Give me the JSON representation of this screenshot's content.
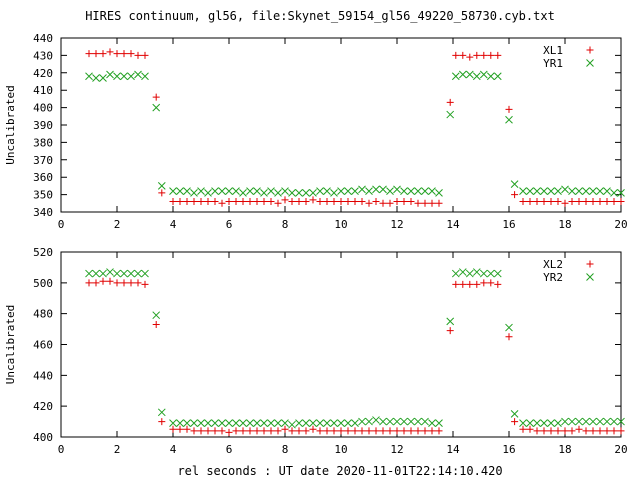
{
  "title": "HIRES continuum, gl56, file:Skynet_59154_gl56_49220_58730.cyb.txt",
  "colors": {
    "xl": "#e00000",
    "yr": "#22a022",
    "axis": "#000000"
  },
  "chart_data": [
    {
      "type": "scatter",
      "title": "HIRES continuum, gl56, file:Skynet_59154_gl56_49220_58730.cyb.txt",
      "xlabel": "",
      "ylabel": "Uncalibrated",
      "xlim": [
        0,
        20
      ],
      "ylim": [
        340,
        440
      ],
      "xticks": [
        0,
        2,
        4,
        6,
        8,
        10,
        12,
        14,
        16,
        18,
        20
      ],
      "yticks": [
        340,
        350,
        360,
        370,
        380,
        390,
        400,
        410,
        420,
        430,
        440
      ],
      "grid": false,
      "legend": "top-right",
      "series": [
        {
          "name": "XL1",
          "marker": "plus",
          "color": "#e00000",
          "x": [
            1.0,
            1.25,
            1.5,
            1.75,
            2.0,
            2.25,
            2.5,
            2.75,
            3.0,
            3.4,
            3.6,
            4.0,
            4.25,
            4.5,
            4.75,
            5.0,
            5.25,
            5.5,
            5.75,
            6.0,
            6.25,
            6.5,
            6.75,
            7.0,
            7.25,
            7.5,
            7.75,
            8.0,
            8.25,
            8.5,
            8.75,
            9.0,
            9.25,
            9.5,
            9.75,
            10.0,
            10.25,
            10.5,
            10.75,
            11.0,
            11.25,
            11.5,
            11.75,
            12.0,
            12.25,
            12.5,
            12.75,
            13.0,
            13.25,
            13.5,
            13.9,
            14.1,
            14.35,
            14.6,
            14.85,
            15.1,
            15.35,
            15.6,
            16.0,
            16.2,
            16.5,
            16.75,
            17.0,
            17.25,
            17.5,
            17.75,
            18.0,
            18.25,
            18.5,
            18.75,
            19.0,
            19.25,
            19.5,
            19.75,
            20.0
          ],
          "y": [
            431,
            431,
            431,
            432,
            431,
            431,
            431,
            430,
            430,
            406,
            351,
            346,
            346,
            346,
            346,
            346,
            346,
            346,
            345,
            346,
            346,
            346,
            346,
            346,
            346,
            346,
            345,
            347,
            346,
            346,
            346,
            347,
            346,
            346,
            346,
            346,
            346,
            346,
            346,
            345,
            346,
            345,
            345,
            346,
            346,
            346,
            345,
            345,
            345,
            345,
            403,
            430,
            430,
            429,
            430,
            430,
            430,
            430,
            399,
            350,
            346,
            346,
            346,
            346,
            346,
            346,
            345,
            346,
            346,
            346,
            346,
            346,
            346,
            346,
            346
          ]
        },
        {
          "name": "YR1",
          "marker": "cross",
          "color": "#22a022",
          "x": [
            1.0,
            1.25,
            1.5,
            1.75,
            2.0,
            2.25,
            2.5,
            2.75,
            3.0,
            3.4,
            3.6,
            4.0,
            4.25,
            4.5,
            4.75,
            5.0,
            5.25,
            5.5,
            5.75,
            6.0,
            6.25,
            6.5,
            6.75,
            7.0,
            7.25,
            7.5,
            7.75,
            8.0,
            8.25,
            8.5,
            8.75,
            9.0,
            9.25,
            9.5,
            9.75,
            10.0,
            10.25,
            10.5,
            10.75,
            11.0,
            11.25,
            11.5,
            11.75,
            12.0,
            12.25,
            12.5,
            12.75,
            13.0,
            13.25,
            13.5,
            13.9,
            14.1,
            14.35,
            14.6,
            14.85,
            15.1,
            15.35,
            15.6,
            16.0,
            16.2,
            16.5,
            16.75,
            17.0,
            17.25,
            17.5,
            17.75,
            18.0,
            18.25,
            18.5,
            18.75,
            19.0,
            19.25,
            19.5,
            19.75,
            20.0
          ],
          "y": [
            418,
            417,
            417,
            419,
            418,
            418,
            418,
            419,
            418,
            400,
            355,
            352,
            352,
            352,
            351,
            352,
            351,
            352,
            352,
            352,
            352,
            351,
            352,
            352,
            351,
            352,
            351,
            352,
            351,
            351,
            351,
            351,
            352,
            352,
            351,
            352,
            352,
            352,
            353,
            352,
            353,
            353,
            352,
            353,
            352,
            352,
            352,
            352,
            352,
            351,
            396,
            418,
            419,
            419,
            418,
            419,
            418,
            418,
            393,
            356,
            352,
            352,
            352,
            352,
            352,
            352,
            353,
            352,
            352,
            352,
            352,
            352,
            352,
            351,
            351
          ]
        }
      ]
    },
    {
      "type": "scatter",
      "title": "",
      "xlabel": "rel seconds : UT date 2020-11-01T22:14:10.420",
      "ylabel": "Uncalibrated",
      "xlim": [
        0,
        20
      ],
      "ylim": [
        400,
        520
      ],
      "xticks": [
        0,
        2,
        4,
        6,
        8,
        10,
        12,
        14,
        16,
        18,
        20
      ],
      "yticks": [
        400,
        420,
        440,
        460,
        480,
        500,
        520
      ],
      "grid": false,
      "legend": "top-right",
      "series": [
        {
          "name": "XL2",
          "marker": "plus",
          "color": "#e00000",
          "x": [
            1.0,
            1.25,
            1.5,
            1.75,
            2.0,
            2.25,
            2.5,
            2.75,
            3.0,
            3.4,
            3.6,
            4.0,
            4.25,
            4.5,
            4.75,
            5.0,
            5.25,
            5.5,
            5.75,
            6.0,
            6.25,
            6.5,
            6.75,
            7.0,
            7.25,
            7.5,
            7.75,
            8.0,
            8.25,
            8.5,
            8.75,
            9.0,
            9.25,
            9.5,
            9.75,
            10.0,
            10.25,
            10.5,
            10.75,
            11.0,
            11.25,
            11.5,
            11.75,
            12.0,
            12.25,
            12.5,
            12.75,
            13.0,
            13.25,
            13.5,
            13.9,
            14.1,
            14.35,
            14.6,
            14.85,
            15.1,
            15.35,
            15.6,
            16.0,
            16.2,
            16.5,
            16.75,
            17.0,
            17.25,
            17.5,
            17.75,
            18.0,
            18.25,
            18.5,
            18.75,
            19.0,
            19.25,
            19.5,
            19.75,
            20.0
          ],
          "y": [
            500,
            500,
            501,
            501,
            500,
            500,
            500,
            500,
            499,
            473,
            410,
            405,
            405,
            405,
            404,
            404,
            404,
            404,
            404,
            403,
            404,
            404,
            404,
            404,
            404,
            404,
            404,
            405,
            404,
            404,
            404,
            405,
            404,
            404,
            404,
            404,
            404,
            404,
            404,
            404,
            404,
            404,
            404,
            404,
            404,
            404,
            404,
            404,
            404,
            404,
            469,
            499,
            499,
            499,
            499,
            500,
            500,
            499,
            465,
            410,
            405,
            405,
            404,
            404,
            404,
            404,
            404,
            404,
            405,
            404,
            404,
            404,
            404,
            404,
            404
          ]
        },
        {
          "name": "YR2",
          "marker": "cross",
          "color": "#22a022",
          "x": [
            1.0,
            1.25,
            1.5,
            1.75,
            2.0,
            2.25,
            2.5,
            2.75,
            3.0,
            3.4,
            3.6,
            4.0,
            4.25,
            4.5,
            4.75,
            5.0,
            5.25,
            5.5,
            5.75,
            6.0,
            6.25,
            6.5,
            6.75,
            7.0,
            7.25,
            7.5,
            7.75,
            8.0,
            8.25,
            8.5,
            8.75,
            9.0,
            9.25,
            9.5,
            9.75,
            10.0,
            10.25,
            10.5,
            10.75,
            11.0,
            11.25,
            11.5,
            11.75,
            12.0,
            12.25,
            12.5,
            12.75,
            13.0,
            13.25,
            13.5,
            13.9,
            14.1,
            14.35,
            14.6,
            14.85,
            15.1,
            15.35,
            15.6,
            16.0,
            16.2,
            16.5,
            16.75,
            17.0,
            17.25,
            17.5,
            17.75,
            18.0,
            18.25,
            18.5,
            18.75,
            19.0,
            19.25,
            19.5,
            19.75,
            20.0
          ],
          "y": [
            506,
            506,
            506,
            507,
            506,
            506,
            506,
            506,
            506,
            479,
            416,
            409,
            409,
            409,
            409,
            409,
            409,
            409,
            409,
            409,
            409,
            409,
            409,
            409,
            409,
            409,
            409,
            409,
            408,
            409,
            409,
            409,
            409,
            409,
            409,
            409,
            409,
            409,
            410,
            410,
            411,
            410,
            410,
            410,
            410,
            410,
            410,
            410,
            409,
            409,
            475,
            506,
            507,
            506,
            507,
            506,
            506,
            506,
            471,
            415,
            409,
            409,
            409,
            409,
            409,
            409,
            410,
            410,
            410,
            410,
            410,
            410,
            410,
            410,
            410
          ]
        }
      ]
    }
  ]
}
